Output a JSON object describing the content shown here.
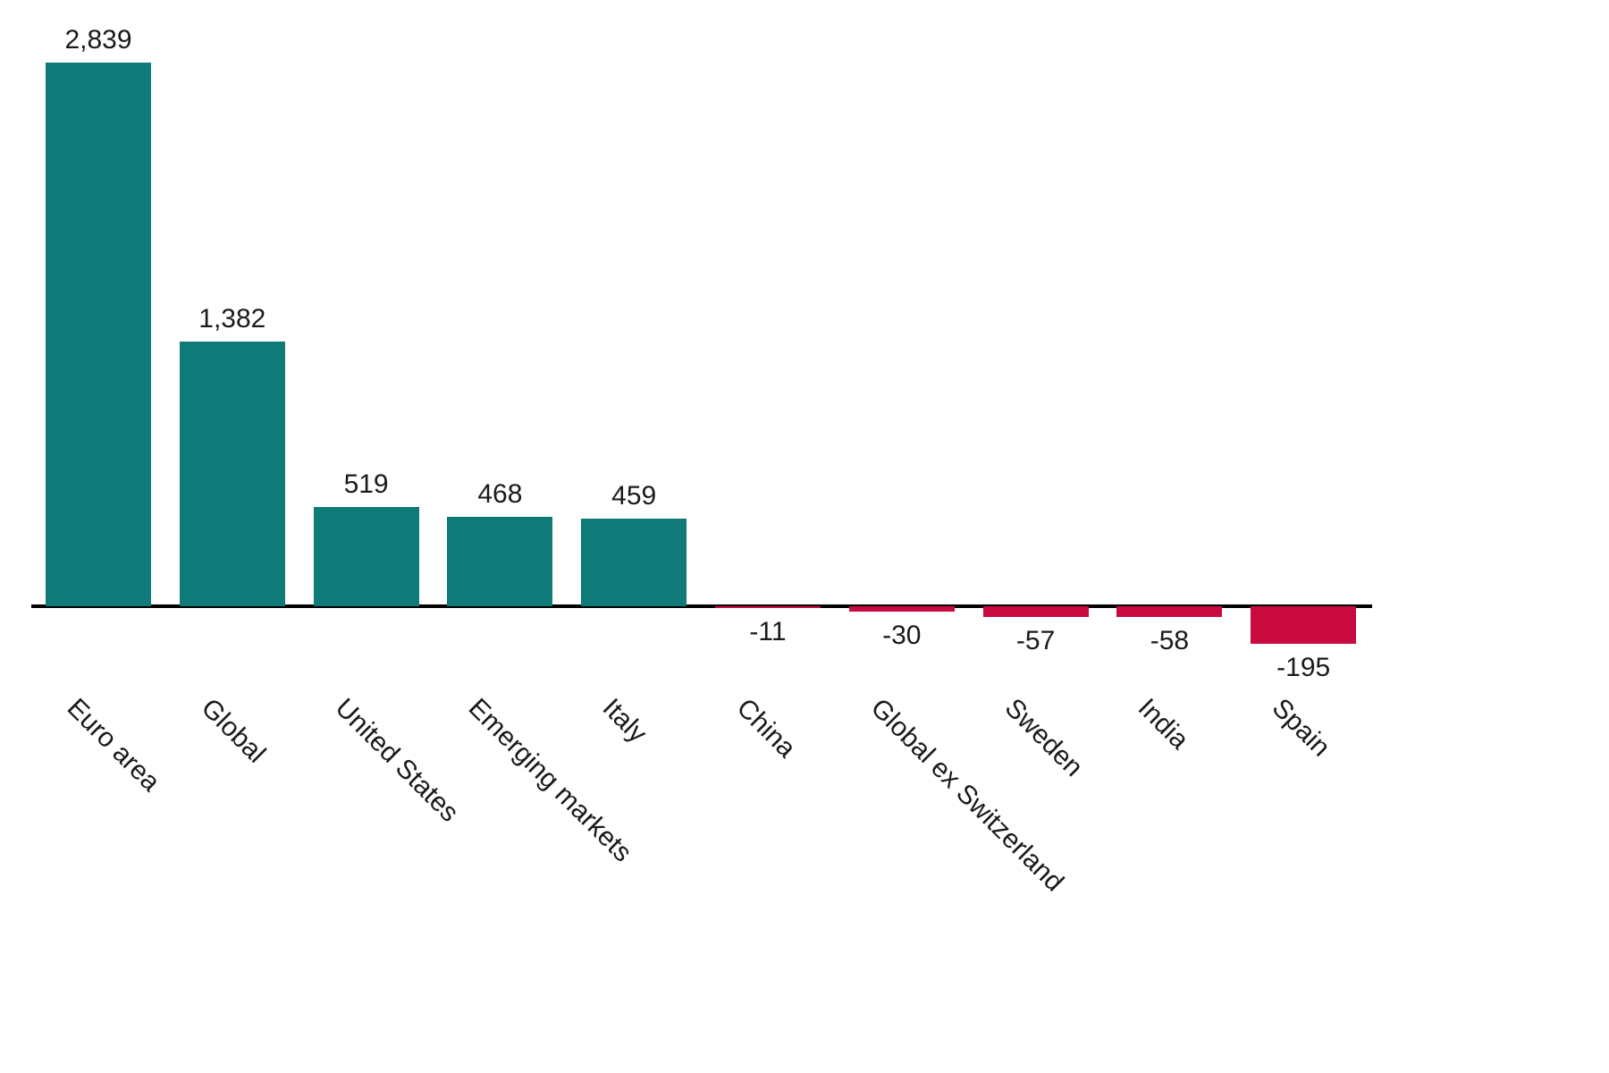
{
  "chart_data": {
    "type": "bar",
    "categories": [
      "Euro area",
      "Global",
      "United States",
      "Emerging markets",
      "Italy",
      "China",
      "Global ex Switzerland",
      "Sweden",
      "India",
      "Spain"
    ],
    "values": [
      2839,
      1382,
      519,
      468,
      459,
      -11,
      -30,
      -57,
      -58,
      -195
    ],
    "value_labels": [
      "2,839",
      "1,382",
      "519",
      "468",
      "459",
      "-11",
      "-30",
      "-57",
      "-58",
      "-195"
    ],
    "title": "",
    "xlabel": "",
    "ylabel": "",
    "ylim": [
      -250,
      3000
    ],
    "grid": false,
    "legend": false,
    "colors": {
      "positive": "#0e7b79",
      "negative": "#c80a3e",
      "axis": "#000000",
      "text": "#1a1a1a"
    }
  }
}
